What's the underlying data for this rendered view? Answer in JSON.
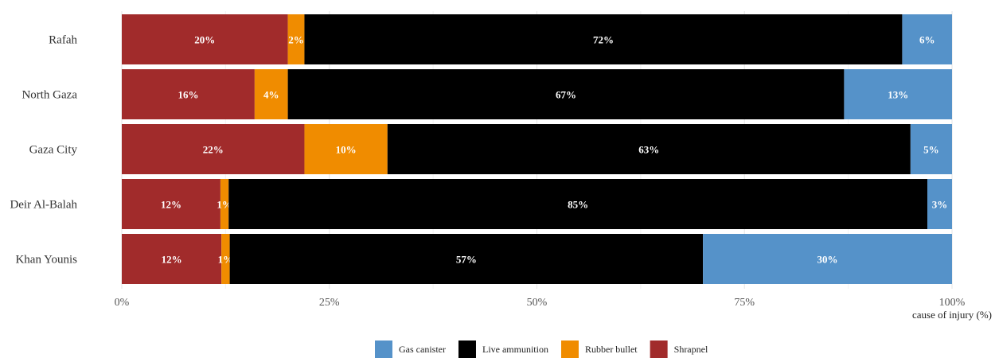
{
  "chart_data": {
    "type": "bar",
    "orientation": "horizontal",
    "stacked": true,
    "categories": [
      "Rafah",
      "North Gaza",
      "Gaza City",
      "Deir Al-Balah",
      "Khan Younis"
    ],
    "series": [
      {
        "name": "Shrapnel",
        "color": "#a12b2b",
        "values": [
          20,
          16,
          22,
          12,
          12
        ]
      },
      {
        "name": "Rubber bullet",
        "color": "#f08c00",
        "values": [
          2,
          4,
          10,
          1,
          1
        ]
      },
      {
        "name": "Live ammunition",
        "color": "#000000",
        "values": [
          72,
          67,
          63,
          85,
          57
        ]
      },
      {
        "name": "Gas canister",
        "color": "#5592c9",
        "values": [
          6,
          13,
          5,
          3,
          30
        ]
      }
    ],
    "legend_order": [
      "Gas canister",
      "Live ammunition",
      "Rubber bullet",
      "Shrapnel"
    ],
    "xlabel": "cause of injury (%)",
    "xlim": [
      0,
      100
    ],
    "xticks": [
      "0%",
      "25%",
      "50%",
      "75%",
      "100%"
    ],
    "grid": true,
    "legend_position": "bottom"
  }
}
